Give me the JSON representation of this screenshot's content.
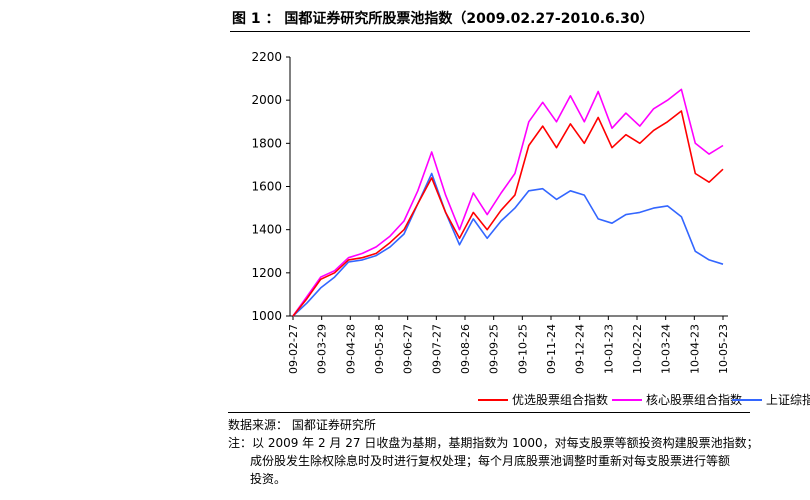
{
  "title": "图 1 ： 国都证券研究所股票池指数（2009.02.27-2010.6.30）",
  "source": "数据来源：  国都证券研究所",
  "notes": [
    "注：以 2009 年 2 月 27 日收盘为基期，基期指数为 1000，对每支股票等额投资构建股票池指数；",
    "成份股发生除权除息时及时进行复权处理；每个月底股票池调整时重新对每支股票进行等额",
    "投资。"
  ],
  "chart_data": {
    "type": "line",
    "ylim": [
      1000,
      2200
    ],
    "yticks": [
      1000,
      1200,
      1400,
      1600,
      1800,
      2000,
      2200
    ],
    "x": [
      "09-02-27",
      "09-03-13",
      "09-03-29",
      "09-04-13",
      "09-04-28",
      "09-05-13",
      "09-05-28",
      "09-06-12",
      "09-06-27",
      "09-07-12",
      "09-07-27",
      "09-08-11",
      "09-08-26",
      "09-09-10",
      "09-09-25",
      "09-10-10",
      "09-10-25",
      "09-11-09",
      "09-11-24",
      "09-12-09",
      "09-12-24",
      "10-01-08",
      "10-01-23",
      "10-02-07",
      "10-02-22",
      "10-03-09",
      "10-03-24",
      "10-04-08",
      "10-04-23",
      "10-05-08",
      "10-05-23",
      "10-06-07"
    ],
    "xtick_labels": [
      "09-02-27",
      "09-03-29",
      "09-04-28",
      "09-05-28",
      "09-06-27",
      "09-07-27",
      "09-08-26",
      "09-09-25",
      "09-10-25",
      "09-11-24",
      "09-12-24",
      "10-01-23",
      "10-02-22",
      "10-03-24",
      "10-04-23",
      "10-05-23"
    ],
    "legend_position": "bottom",
    "series": [
      {
        "name": "优选股票组合指数",
        "color": "#ff0000",
        "values": [
          1000,
          1080,
          1170,
          1200,
          1260,
          1270,
          1290,
          1340,
          1400,
          1520,
          1640,
          1480,
          1360,
          1480,
          1400,
          1490,
          1560,
          1790,
          1880,
          1780,
          1890,
          1800,
          1920,
          1780,
          1840,
          1800,
          1860,
          1900,
          1950,
          1660,
          1620,
          1680
        ]
      },
      {
        "name": "核心股票组合指数",
        "color": "#ff00ff",
        "values": [
          1000,
          1090,
          1180,
          1210,
          1270,
          1290,
          1320,
          1370,
          1440,
          1580,
          1760,
          1560,
          1400,
          1570,
          1470,
          1570,
          1660,
          1900,
          1990,
          1900,
          2020,
          1900,
          2040,
          1870,
          1940,
          1880,
          1960,
          2000,
          2050,
          1800,
          1750,
          1790
        ]
      },
      {
        "name": "上证综指",
        "color": "#3366ff",
        "values": [
          1000,
          1060,
          1130,
          1180,
          1250,
          1260,
          1280,
          1320,
          1380,
          1520,
          1660,
          1480,
          1330,
          1450,
          1360,
          1440,
          1500,
          1580,
          1590,
          1540,
          1580,
          1560,
          1450,
          1430,
          1470,
          1480,
          1500,
          1510,
          1460,
          1300,
          1260,
          1240
        ]
      }
    ]
  }
}
